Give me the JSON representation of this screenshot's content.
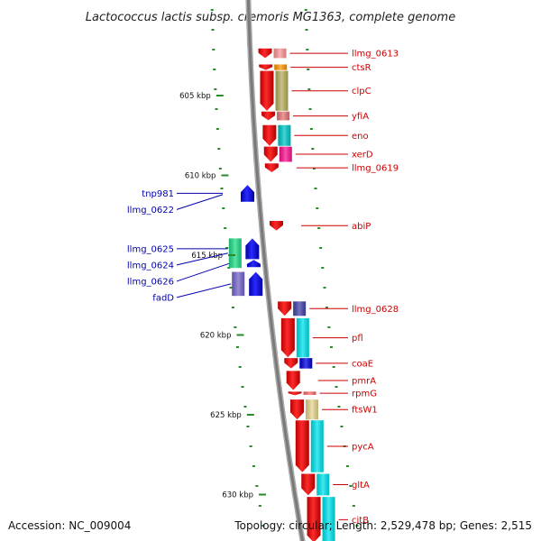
{
  "title": "Lactococcus lactis subsp. cremoris MG1363, complete genome",
  "footer": {
    "accession": "Accession: NC_009004",
    "summary": "Topology: circular; Length: 2,529,478 bp; Genes: 2,515"
  },
  "kbp_marks": [
    {
      "label": "605 kbp",
      "kbp": 605
    },
    {
      "label": "610 kbp",
      "kbp": 610
    },
    {
      "label": "615 kbp",
      "kbp": 615
    },
    {
      "label": "620 kbp",
      "kbp": 620
    },
    {
      "label": "625 kbp",
      "kbp": 625
    },
    {
      "label": "630 kbp",
      "kbp": 630
    }
  ],
  "colors": {
    "forward": "#ee0000",
    "reverse": "#0000ee",
    "label_forward": "#cc0000",
    "label_reverse": "#0000aa",
    "backbone": "#888888",
    "tick": "#2a8a2a"
  },
  "forward_genes": [
    {
      "label": "llmg_0613",
      "start_kbp": 602.05,
      "end_kbp": 602.65,
      "cog": "#ff9999"
    },
    {
      "label": "ctsR",
      "start_kbp": 603.05,
      "end_kbp": 603.4,
      "cog": "#ff9900"
    },
    {
      "label": "clpC",
      "start_kbp": 603.45,
      "end_kbp": 605.95,
      "cog": "#b8b060"
    },
    {
      "label": "yfiA",
      "start_kbp": 606.0,
      "end_kbp": 606.55,
      "cog": "#e87878"
    },
    {
      "label": "eno",
      "start_kbp": 606.85,
      "end_kbp": 608.15,
      "cog": "#00c8c8"
    },
    {
      "label": "xerD",
      "start_kbp": 608.2,
      "end_kbp": 609.15,
      "cog": "#ff1493"
    },
    {
      "label": "llmg_0619",
      "start_kbp": 609.25,
      "end_kbp": 609.8,
      "cog": ""
    },
    {
      "label": "abiP",
      "start_kbp": 612.85,
      "end_kbp": 613.45,
      "cog": ""
    },
    {
      "label": "llmg_0628",
      "start_kbp": 617.9,
      "end_kbp": 618.8,
      "cog": "#4444aa"
    },
    {
      "label": "pfl",
      "start_kbp": 618.95,
      "end_kbp": 621.4,
      "cog": "#00e5ee"
    },
    {
      "label": "coaE",
      "start_kbp": 621.45,
      "end_kbp": 622.1,
      "cog": "#0000dd"
    },
    {
      "label": "pmrA",
      "start_kbp": 622.25,
      "end_kbp": 623.45,
      "cog": ""
    },
    {
      "label": "rpmG",
      "start_kbp": 623.55,
      "end_kbp": 623.75,
      "cog": "#ff6666"
    },
    {
      "label": "ftsW1",
      "start_kbp": 624.05,
      "end_kbp": 625.3,
      "cog": "#e8d890"
    },
    {
      "label": "pycA",
      "start_kbp": 625.35,
      "end_kbp": 628.6,
      "cog": "#00e5ee"
    },
    {
      "label": "gltA",
      "start_kbp": 628.7,
      "end_kbp": 630.05,
      "cog": "#00e5ee"
    },
    {
      "label": "citB",
      "start_kbp": 630.15,
      "end_kbp": 633.0,
      "cog": "#00e5ee"
    }
  ],
  "reverse_genes": [
    {
      "label": "tnp981",
      "start_kbp": 610.6,
      "end_kbp": 611.65,
      "cog": ""
    },
    {
      "label": "llmg_0622",
      "start_kbp": 611.05,
      "end_kbp": 611.35,
      "cog": ""
    },
    {
      "label": "llmg_0624",
      "start_kbp": 613.95,
      "end_kbp": 615.8,
      "cog": "#22dd88"
    },
    {
      "label": "llmg_0625",
      "start_kbp": 613.95,
      "end_kbp": 615.25,
      "cog": ""
    },
    {
      "label": "llmg_0626",
      "start_kbp": 615.3,
      "end_kbp": 615.75,
      "cog": ""
    },
    {
      "label": "fadD",
      "start_kbp": 616.05,
      "end_kbp": 617.55,
      "cog": "#7766cc"
    }
  ]
}
